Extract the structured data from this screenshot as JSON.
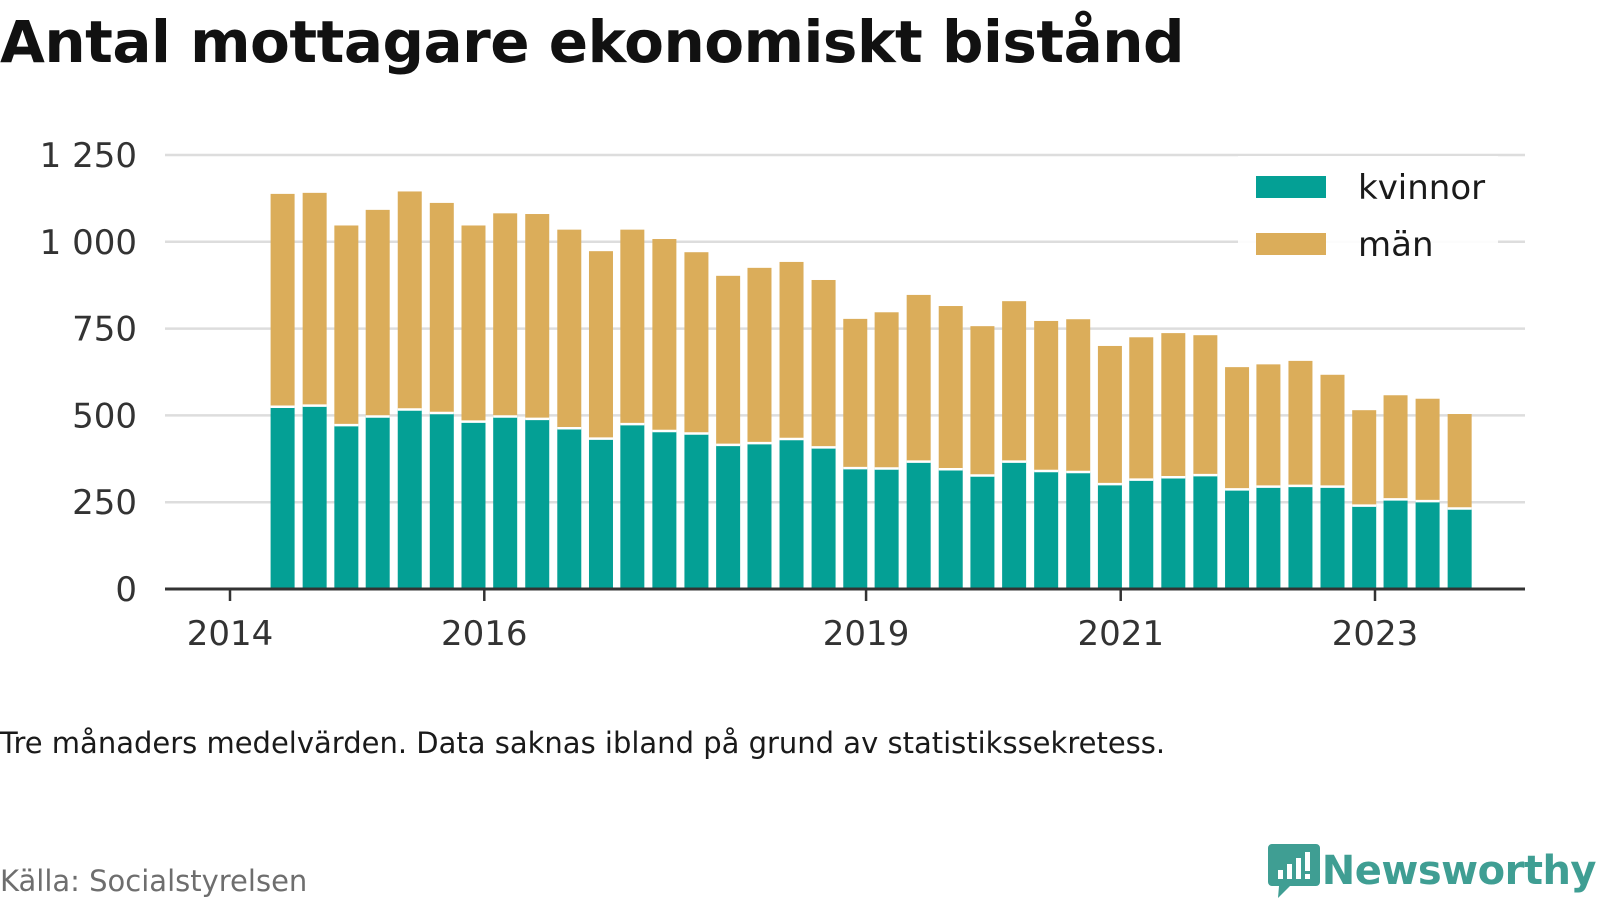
{
  "title": "Antal mottagare ekonomiskt bistånd",
  "note": "Tre månaders medelvärden. Data saknas ibland på grund av statistikssekretess.",
  "source": "Källa: Socialstyrelsen",
  "brand": "Newsworthy",
  "colors": {
    "kvinnor": "#04a095",
    "man": "#dbad5a",
    "grid": "#dddddd",
    "axis": "#333333",
    "brand": "#3f9e93"
  },
  "chart_data": {
    "type": "bar",
    "stacked": true,
    "x_ticks": [
      "2014",
      "2016",
      "2019",
      "2021",
      "2023"
    ],
    "y_ticks": [
      "0",
      "250",
      "500",
      "750",
      "1 000",
      "1 250"
    ],
    "ylim": [
      0,
      1250
    ],
    "grid": true,
    "legend_position": "top-right",
    "x": [
      "2014-06",
      "2014-09",
      "2014-12",
      "2015-03",
      "2015-06",
      "2015-09",
      "2015-12",
      "2016-03",
      "2016-06",
      "2016-09",
      "2016-12",
      "2017-03",
      "2017-06",
      "2017-09",
      "2017-12",
      "2018-03",
      "2018-06",
      "2018-09",
      "2018-12",
      "2019-03",
      "2019-06",
      "2019-09",
      "2019-12",
      "2020-03",
      "2020-06",
      "2020-09",
      "2020-12",
      "2021-03",
      "2021-06",
      "2021-09",
      "2021-12",
      "2022-03",
      "2022-06",
      "2022-09",
      "2022-12",
      "2023-03",
      "2023-06",
      "2023-09"
    ],
    "series": [
      {
        "name": "kvinnor",
        "values": [
          525,
          528,
          472,
          497,
          517,
          507,
          482,
          497,
          490,
          463,
          433,
          475,
          455,
          448,
          415,
          420,
          432,
          408,
          348,
          347,
          367,
          345,
          327,
          367,
          340,
          337,
          302,
          315,
          322,
          328,
          287,
          295,
          297,
          295,
          240,
          258,
          253,
          232
        ]
      },
      {
        "name": "män",
        "values": [
          613,
          613,
          575,
          595,
          628,
          605,
          565,
          585,
          590,
          572,
          540,
          560,
          553,
          522,
          487,
          505,
          510,
          482,
          430,
          450,
          480,
          470,
          430,
          462,
          432,
          440,
          398,
          410,
          415,
          403,
          352,
          352,
          360,
          322,
          275,
          300,
          295,
          272
        ]
      }
    ]
  }
}
